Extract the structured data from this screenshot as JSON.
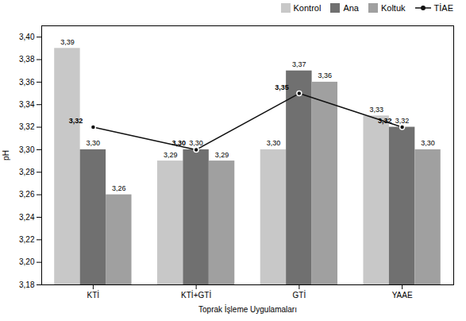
{
  "chart_data": {
    "type": "bar",
    "categories": [
      "KTİ",
      "KTİ+GTİ",
      "GTİ",
      "YAAE"
    ],
    "xlabel": "Toprak İşleme Uygulamaları",
    "ylabel": "pH",
    "ylim": [
      3.18,
      3.41
    ],
    "yticks": [
      {
        "value": 3.18,
        "label": "3,18"
      },
      {
        "value": 3.2,
        "label": "3,20"
      },
      {
        "value": 3.22,
        "label": "3,22"
      },
      {
        "value": 3.24,
        "label": "3,24"
      },
      {
        "value": 3.26,
        "label": "3,26"
      },
      {
        "value": 3.28,
        "label": "3,28"
      },
      {
        "value": 3.3,
        "label": "3,30"
      },
      {
        "value": 3.32,
        "label": "3,32"
      },
      {
        "value": 3.34,
        "label": "3,34"
      },
      {
        "value": 3.36,
        "label": "3,36"
      },
      {
        "value": 3.38,
        "label": "3,38"
      },
      {
        "value": 3.4,
        "label": "3,40"
      }
    ],
    "grid": false,
    "legend": "upper right",
    "data_labels": true,
    "series": [
      {
        "name": "Kontrol",
        "type": "bar",
        "color": "#c8c8c8",
        "values": [
          3.39,
          3.29,
          3.3,
          3.33
        ],
        "value_labels": [
          "3,39",
          "3,29",
          "3,30",
          "3,33"
        ]
      },
      {
        "name": "Ana",
        "type": "bar",
        "color": "#707070",
        "values": [
          3.3,
          3.3,
          3.37,
          3.32
        ],
        "value_labels": [
          "3,30",
          "3,30",
          "3,37",
          "3,32"
        ]
      },
      {
        "name": "Koltuk",
        "type": "bar",
        "color": "#a0a0a0",
        "values": [
          3.26,
          3.29,
          3.36,
          3.3
        ],
        "value_labels": [
          "3,26",
          "3,29",
          "3,36",
          "3,30"
        ]
      },
      {
        "name": "TİAE",
        "type": "line",
        "color": "#111111",
        "marker": "circle",
        "values": [
          3.32,
          3.3,
          3.35,
          3.32
        ],
        "value_labels": [
          "3,32",
          "3,30",
          "3,35",
          "3,32"
        ]
      }
    ]
  }
}
